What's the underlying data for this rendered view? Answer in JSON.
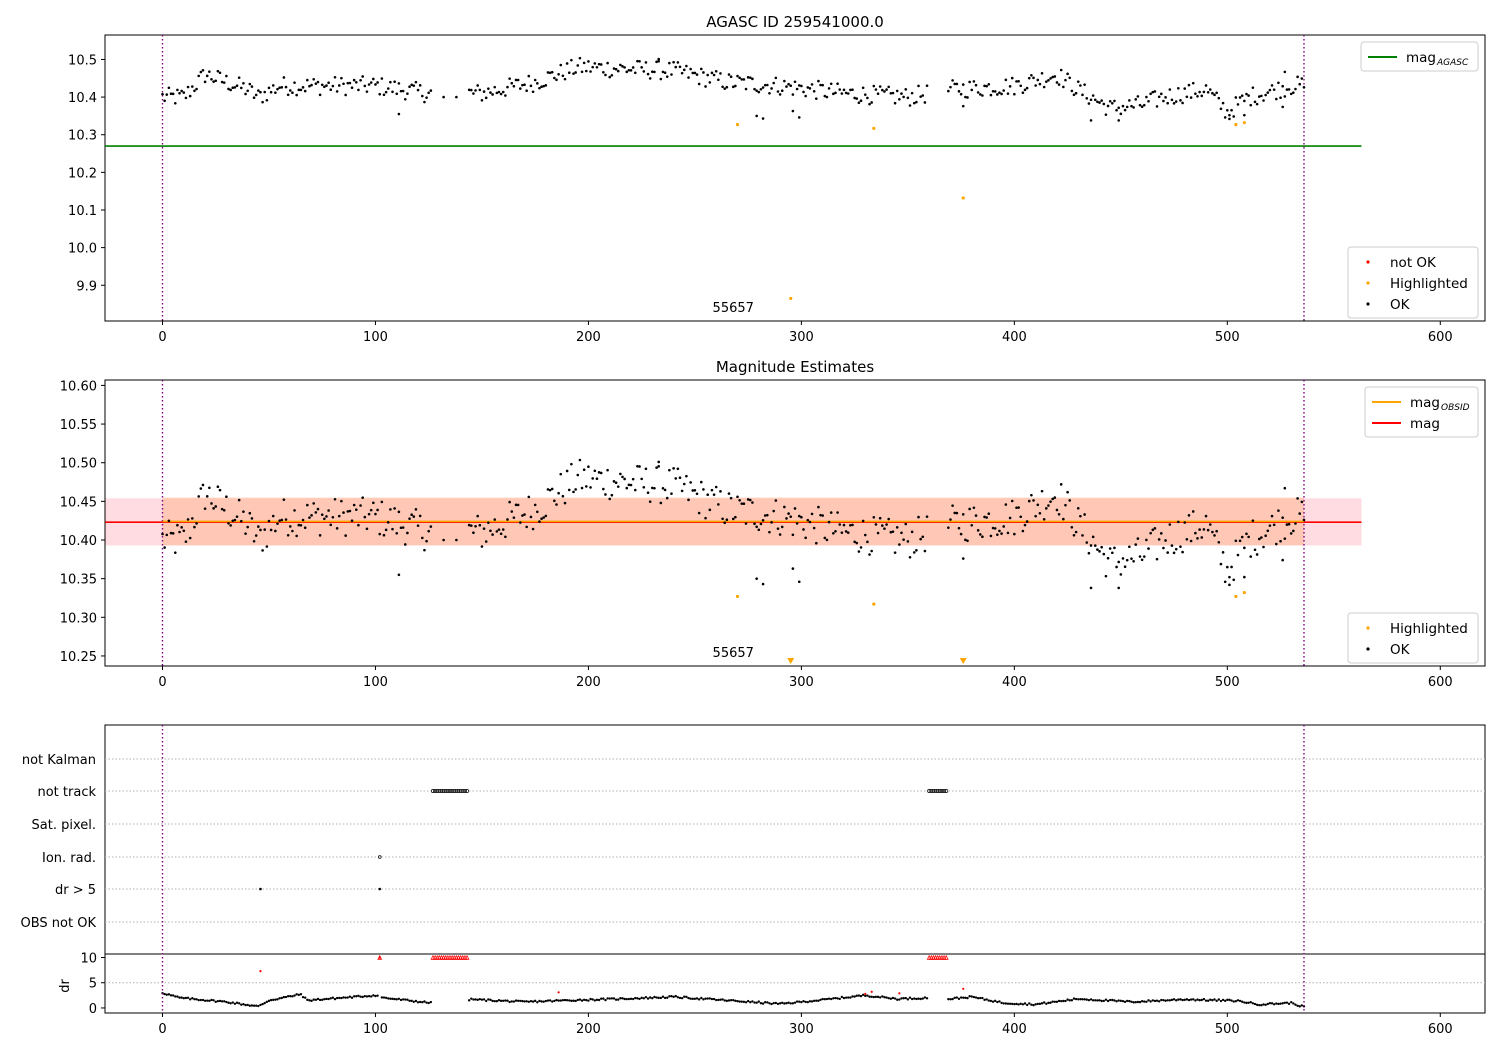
{
  "chart_data": [
    {
      "type": "scatter",
      "title": "AGASC ID 259541000.0",
      "xlim": [
        -27,
        621
      ],
      "ylim": [
        9.805,
        10.565
      ],
      "xticks": [
        0,
        100,
        200,
        300,
        400,
        500,
        600
      ],
      "yticks": [
        9.9,
        10.0,
        10.1,
        10.2,
        10.3,
        10.4,
        10.5
      ],
      "ytick_decimals": 1,
      "vlines": [
        0,
        536
      ],
      "obsid_label": {
        "text": "55657",
        "x": 268
      },
      "reference_line": {
        "value": 10.27,
        "color": "#008000",
        "x_end": 563
      },
      "legend_top": {
        "position": "upper-right",
        "entries": [
          {
            "label": "mag",
            "sub": "AGASC",
            "color": "#008000"
          }
        ]
      },
      "legend_bottom": {
        "position": "lower-right",
        "entries": [
          {
            "label": "not OK",
            "color": "#ff0000"
          },
          {
            "label": "Highlighted",
            "color": "#ffa500"
          },
          {
            "label": "OK",
            "color": "#000000"
          }
        ]
      },
      "highlighted": [
        [
          270,
          10.327
        ],
        [
          334,
          10.317
        ],
        [
          376,
          10.132
        ],
        [
          295,
          9.865
        ],
        [
          504,
          10.327
        ],
        [
          508,
          10.332
        ]
      ]
    },
    {
      "type": "scatter",
      "title": "Magnitude Estimates",
      "xlim": [
        -27,
        621
      ],
      "ylim": [
        10.237,
        10.607
      ],
      "xticks": [
        0,
        100,
        200,
        300,
        400,
        500,
        600
      ],
      "yticks": [
        10.25,
        10.3,
        10.35,
        10.4,
        10.45,
        10.5,
        10.55,
        10.6
      ],
      "ytick_decimals": 2,
      "vlines": [
        0,
        536
      ],
      "obsid_label": {
        "text": "55657",
        "x": 268
      },
      "mag_line": {
        "value": 10.423,
        "color": "#ff0000",
        "band": [
          10.393,
          10.454
        ],
        "x_end": 563
      },
      "mag_obsid_line": {
        "value": 10.424,
        "color": "#ffa500",
        "band": [
          10.393,
          10.455
        ],
        "x_end": 536
      },
      "legend_top": {
        "position": "upper-right",
        "entries": [
          {
            "label": "mag",
            "sub": "OBSID",
            "color": "#ffa500"
          },
          {
            "label": "mag",
            "color": "#ff0000"
          }
        ]
      },
      "legend_bottom": {
        "position": "lower-right",
        "entries": [
          {
            "label": "Highlighted",
            "color": "#ffa500"
          },
          {
            "label": "OK",
            "color": "#000000"
          }
        ]
      },
      "highlighted": [
        [
          270,
          10.327
        ],
        [
          334,
          10.317
        ],
        [
          504,
          10.327
        ],
        [
          508,
          10.332
        ]
      ],
      "below_limit_markers": [
        295,
        376
      ]
    },
    {
      "type": "scatter",
      "xlim": [
        -27,
        621
      ],
      "xticks": [
        0,
        100,
        200,
        300,
        400,
        500,
        600
      ],
      "vlines": [
        0,
        536
      ],
      "flag_labels": [
        "not Kalman",
        "not track",
        "Sat. pixel.",
        "Ion. rad.",
        "dr > 5",
        "OBS not OK"
      ],
      "flags": {
        "not track": [
          [
            127,
            143
          ],
          [
            360,
            368
          ]
        ],
        "Ion. rad.": [
          102
        ],
        "dr > 5": [
          46,
          102
        ]
      },
      "dr_ylabel": "dr",
      "dr_yticks": [
        0,
        5,
        10
      ],
      "dr_ylim": [
        -1,
        10.5
      ],
      "dr_red_points": [
        [
          46,
          7.3
        ],
        [
          102,
          10
        ],
        [
          186,
          3.1
        ],
        [
          330,
          2.8
        ],
        [
          333,
          3.2
        ],
        [
          346,
          2.9
        ],
        [
          376,
          3.8
        ]
      ],
      "dr_capped_red": [
        102,
        [
          127,
          143
        ],
        [
          360,
          368
        ]
      ]
    }
  ]
}
